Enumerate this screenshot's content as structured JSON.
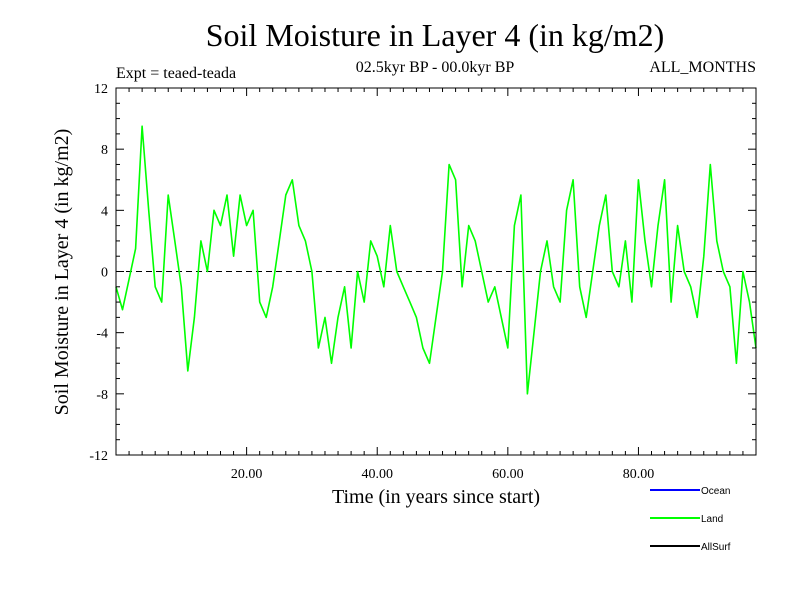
{
  "chart_data": {
    "type": "line",
    "title": "Soil Moisture in Layer 4 (in kg/m2)",
    "subtitle_left": "Expt = teaed-teada",
    "subtitle_center": "02.5kyr BP - 00.0kyr BP",
    "subtitle_right": "ALL_MONTHS",
    "xlabel": "Time (in years since start)",
    "ylabel": "Soil Moisture in Layer 4 (in kg/m2)",
    "xlim": [
      0,
      98
    ],
    "ylim": [
      -12,
      12
    ],
    "x_ticks": [
      20,
      40,
      60,
      80
    ],
    "x_tick_labels": [
      "20.00",
      "40.00",
      "60.00",
      "80.00"
    ],
    "y_ticks": [
      -12,
      -8,
      -4,
      0,
      4,
      8,
      12
    ],
    "y_tick_labels": [
      "-12",
      "-8",
      "-4",
      "0",
      "4",
      "8",
      "12"
    ],
    "zero_line": 0,
    "legend": [
      {
        "name": "Ocean",
        "color": "#0000ff"
      },
      {
        "name": "Land",
        "color": "#00ff00"
      },
      {
        "name": "AllSurf",
        "color": "#000000"
      }
    ],
    "series": [
      {
        "name": "Land",
        "color": "#00ff00",
        "x": [
          0,
          1,
          2,
          3,
          4,
          5,
          6,
          7,
          8,
          9,
          10,
          11,
          12,
          13,
          14,
          15,
          16,
          17,
          18,
          19,
          20,
          21,
          22,
          23,
          24,
          25,
          26,
          27,
          28,
          29,
          30,
          31,
          32,
          33,
          34,
          35,
          36,
          37,
          38,
          39,
          40,
          41,
          42,
          43,
          44,
          45,
          46,
          47,
          48,
          49,
          50,
          51,
          52,
          53,
          54,
          55,
          56,
          57,
          58,
          59,
          60,
          61,
          62,
          63,
          64,
          65,
          66,
          67,
          68,
          69,
          70,
          71,
          72,
          73,
          74,
          75,
          76,
          77,
          78,
          79,
          80,
          81,
          82,
          83,
          84,
          85,
          86,
          87,
          88,
          89,
          90,
          91,
          92,
          93,
          94,
          95,
          96,
          97,
          98
        ],
        "values": [
          -1,
          -2.5,
          -0.5,
          1.5,
          9.5,
          4,
          -1,
          -2,
          5,
          2,
          -1,
          -6.5,
          -3,
          2,
          0,
          4,
          3,
          5,
          1,
          5,
          3,
          4,
          -2,
          -3,
          -1,
          2,
          5,
          6,
          3,
          2,
          0,
          -5,
          -3,
          -6,
          -3,
          -1,
          -5,
          0,
          -2,
          2,
          1,
          -1,
          3,
          0,
          -1,
          -2,
          -3,
          -5,
          -6,
          -3,
          0,
          7,
          6,
          -1,
          3,
          2,
          0,
          -2,
          -1,
          -3,
          -5,
          3,
          5,
          -8,
          -4,
          0,
          2,
          -1,
          -2,
          4,
          6,
          -1,
          -3,
          0,
          3,
          5,
          0,
          -1,
          2,
          -2,
          6,
          2,
          -1,
          3,
          6,
          -2,
          3,
          0,
          -1,
          -3,
          1,
          7,
          2,
          0,
          -1,
          -6,
          0,
          -2,
          -5
        ]
      }
    ]
  }
}
